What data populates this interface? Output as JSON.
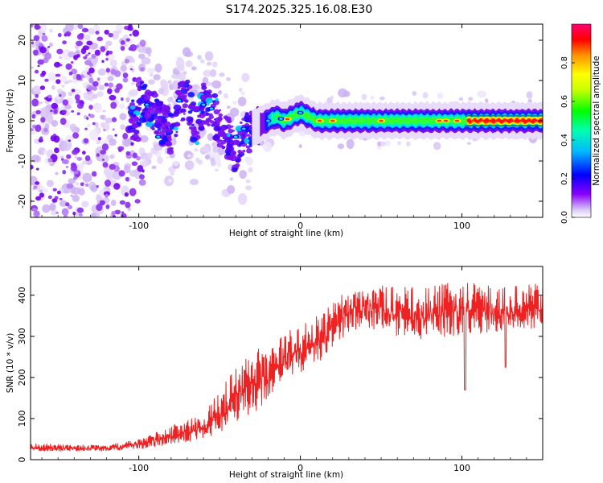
{
  "title": "S174.2025.325.16.08.E30",
  "chart_data": [
    {
      "type": "heatmap",
      "name": "spectrogram",
      "xlabel": "Height of straight line (km)",
      "ylabel": "Frequency (Hz)",
      "xlim": [
        -167,
        150
      ],
      "ylim": [
        -24,
        24
      ],
      "xticks": [
        -100,
        0,
        100
      ],
      "yticks": [
        -20,
        -10,
        0,
        10,
        20
      ],
      "xtick_labels": [
        "-100",
        "0",
        "100"
      ],
      "ytick_labels": [
        "-20",
        "-10",
        "0",
        "10",
        "20"
      ],
      "colorbar": {
        "label": "Normalized spectral amplitude",
        "range": [
          0,
          1
        ],
        "ticks": [
          0.0,
          0.2,
          0.4,
          0.6,
          0.8
        ],
        "tick_labels": [
          "0.0",
          "0.2",
          "0.4",
          "0.6",
          "0.8"
        ],
        "colormap": [
          "#e0d4f8",
          "#7b00ff",
          "#0000ff",
          "#00d4ff",
          "#00ff60",
          "#a0ff00",
          "#ffff00",
          "#ff8000",
          "#ff0000",
          "#ff0080"
        ]
      },
      "ridge": [
        [
          -100,
          5
        ],
        [
          -95,
          4
        ],
        [
          -90,
          2
        ],
        [
          -85,
          -1
        ],
        [
          -80,
          -3
        ],
        [
          -75,
          4
        ],
        [
          -70,
          6
        ],
        [
          -65,
          -2
        ],
        [
          -60,
          4
        ],
        [
          -55,
          3
        ],
        [
          -50,
          -1
        ],
        [
          -45,
          -4
        ],
        [
          -40,
          -8
        ],
        [
          -35,
          -4
        ],
        [
          -30,
          -2
        ],
        [
          -25,
          -1
        ],
        [
          -20,
          0
        ],
        [
          -15,
          1
        ],
        [
          -10,
          0
        ],
        [
          -5,
          1
        ],
        [
          0,
          2
        ],
        [
          5,
          1
        ],
        [
          10,
          0
        ],
        [
          20,
          0
        ],
        [
          40,
          0
        ],
        [
          60,
          0
        ],
        [
          80,
          0
        ],
        [
          95,
          0
        ],
        [
          100,
          0
        ],
        [
          150,
          0
        ]
      ]
    },
    {
      "type": "line",
      "name": "snr",
      "xlabel": "Height of straight line (km)",
      "ylabel": "SNR (10 * v/v)",
      "xlim": [
        -167,
        150
      ],
      "ylim": [
        0,
        470
      ],
      "xticks": [
        -100,
        0,
        100
      ],
      "yticks": [
        0,
        100,
        200,
        300,
        400
      ],
      "xtick_labels": [
        "-100",
        "0",
        "100"
      ],
      "ytick_labels": [
        "0",
        "100",
        "200",
        "300",
        "400"
      ],
      "color": "#ee2222",
      "envelope": [
        [
          -167,
          20,
          40
        ],
        [
          -120,
          20,
          35
        ],
        [
          -100,
          25,
          50
        ],
        [
          -80,
          35,
          85
        ],
        [
          -60,
          50,
          110
        ],
        [
          -45,
          70,
          200
        ],
        [
          -35,
          90,
          250
        ],
        [
          -25,
          120,
          280
        ],
        [
          -20,
          150,
          260
        ],
        [
          -10,
          190,
          310
        ],
        [
          0,
          210,
          330
        ],
        [
          10,
          230,
          350
        ],
        [
          20,
          270,
          380
        ],
        [
          30,
          310,
          420
        ],
        [
          40,
          320,
          430
        ],
        [
          60,
          300,
          420
        ],
        [
          80,
          290,
          420
        ],
        [
          100,
          300,
          440
        ],
        [
          120,
          310,
          420
        ],
        [
          150,
          320,
          430
        ]
      ],
      "dips": [
        [
          102,
          170
        ],
        [
          127,
          225
        ]
      ]
    }
  ]
}
